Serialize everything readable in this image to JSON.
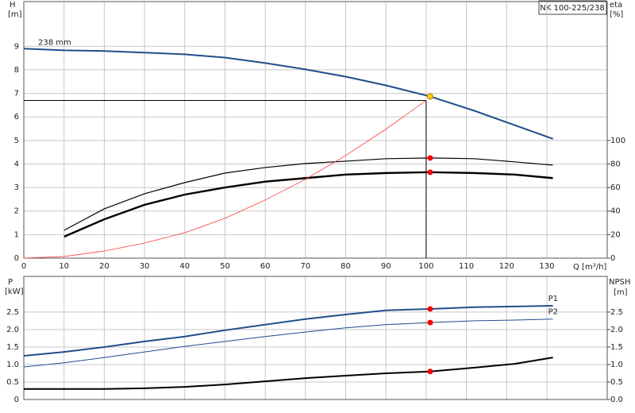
{
  "chart_data": [
    {
      "type": "line",
      "title": "NK 100-225/238",
      "xlabel": "Q [m³/h]",
      "ylabel": "H",
      "yunit": "[m]",
      "y2label": "eta",
      "y2unit": "[%]",
      "xlim": [
        0,
        145
      ],
      "xticks": [
        0,
        10,
        20,
        30,
        40,
        50,
        60,
        70,
        80,
        90,
        100,
        110,
        120,
        130
      ],
      "ylim": [
        0,
        10.9
      ],
      "yticks": [
        0,
        1,
        2,
        3,
        4,
        5,
        6,
        7,
        8,
        9
      ],
      "y2lim": [
        0,
        218
      ],
      "y2ticks": [
        0,
        20,
        40,
        60,
        80,
        100
      ],
      "grid": true,
      "duty": {
        "x": 100,
        "y": 6.7
      },
      "series": [
        {
          "name": "238 mm",
          "color": "#1f4e8c",
          "width": 2,
          "x": [
            0,
            10,
            20,
            30,
            40,
            50,
            60,
            70,
            80,
            90,
            101,
            112,
            122,
            131.5
          ],
          "values": [
            8.9,
            8.83,
            8.8,
            8.73,
            8.66,
            8.52,
            8.29,
            8.02,
            7.71,
            7.34,
            6.87,
            6.26,
            5.65,
            5.07
          ]
        },
        {
          "color": "#000000",
          "width": 1.2,
          "axis": "y2",
          "x": [
            10,
            20,
            30,
            40,
            50,
            60,
            70,
            80,
            90,
            101,
            112,
            122,
            131.5
          ],
          "values": [
            23.6,
            41.9,
            54.7,
            64.2,
            72.3,
            77,
            80.4,
            82.4,
            84.5,
            85.1,
            84.5,
            81.8,
            79
          ]
        },
        {
          "color": "#000000",
          "width": 2.4,
          "axis": "y2",
          "x": [
            10,
            20,
            30,
            40,
            50,
            60,
            70,
            80,
            90,
            101,
            112,
            122,
            131.5
          ],
          "values": [
            18.2,
            33,
            45.3,
            54,
            60,
            65,
            68,
            71,
            72.3,
            73,
            72.3,
            71,
            68
          ]
        },
        {
          "color": "#ff3b3b",
          "width": 0.8,
          "x": [
            0,
            10,
            20,
            30,
            40,
            50,
            60,
            70,
            80,
            90,
            100
          ],
          "values": [
            0,
            0.07,
            0.3,
            0.64,
            1.08,
            1.69,
            2.47,
            3.35,
            4.36,
            5.48,
            6.7
          ]
        }
      ],
      "points": [
        {
          "x": 101,
          "y": 6.87,
          "color": "#ffd200"
        },
        {
          "x": 101,
          "y": 85.1,
          "axis": "y2",
          "color": "#ff0000"
        },
        {
          "x": 101,
          "y": 73,
          "axis": "y2",
          "color": "#ff0000"
        }
      ]
    },
    {
      "type": "line",
      "ylabel": "P",
      "yunit": "[kW]",
      "y2label": "NPSH",
      "y2unit": "[m]",
      "xlim": [
        0,
        145
      ],
      "xticks": [
        0,
        10,
        20,
        30,
        40,
        50,
        60,
        70,
        80,
        90,
        100,
        110,
        120,
        130
      ],
      "ylim": [
        0,
        3.52
      ],
      "yticks": [
        0,
        0.5,
        {
          "value": 1,
          "label": "1.0"
        },
        {
          "value": 1.5,
          "label": "1.5"
        },
        {
          "value": 2,
          "label": "2.0"
        },
        {
          "value": 2.5,
          "label": "2.5"
        }
      ],
      "y2lim": [
        0,
        3.52
      ],
      "y2ticks": [
        {
          "value": 0,
          "label": "0.0"
        },
        0.5,
        {
          "value": 1,
          "label": "1.0"
        },
        {
          "value": 1.5,
          "label": "1.5"
        },
        {
          "value": 2,
          "label": "2.0"
        },
        {
          "value": 2.5,
          "label": "2.5"
        }
      ],
      "grid": true,
      "series": [
        {
          "name": "P1",
          "color": "#1f4e8c",
          "width": 2,
          "x": [
            0,
            10,
            20,
            30,
            40,
            50,
            60,
            70,
            80,
            90,
            101,
            112,
            122,
            131.5
          ],
          "values": [
            1.25,
            1.36,
            1.5,
            1.66,
            1.8,
            1.98,
            2.14,
            2.3,
            2.43,
            2.55,
            2.59,
            2.64,
            2.66,
            2.68
          ]
        },
        {
          "name": "P2",
          "color": "#1f4e8c",
          "width": 1,
          "x": [
            0,
            10,
            20,
            30,
            40,
            50,
            60,
            70,
            80,
            90,
            101,
            112,
            122,
            131.5
          ],
          "values": [
            0.93,
            1.05,
            1.2,
            1.36,
            1.52,
            1.66,
            1.8,
            1.93,
            2.05,
            2.14,
            2.2,
            2.25,
            2.27,
            2.3
          ]
        },
        {
          "color": "#000000",
          "width": 2,
          "axis": "y2",
          "x": [
            0,
            10,
            20,
            30,
            40,
            50,
            60,
            70,
            80,
            90,
            101,
            112,
            122,
            131.5
          ],
          "values": [
            0.3,
            0.3,
            0.3,
            0.32,
            0.36,
            0.43,
            0.52,
            0.61,
            0.68,
            0.75,
            0.8,
            0.91,
            1.02,
            1.2
          ]
        }
      ],
      "points": [
        {
          "x": 101,
          "y": 2.59,
          "color": "#ff0000"
        },
        {
          "x": 101,
          "y": 2.2,
          "color": "#ff0000"
        },
        {
          "x": 101,
          "y": 0.8,
          "axis": "y2",
          "color": "#ff0000"
        }
      ]
    }
  ]
}
